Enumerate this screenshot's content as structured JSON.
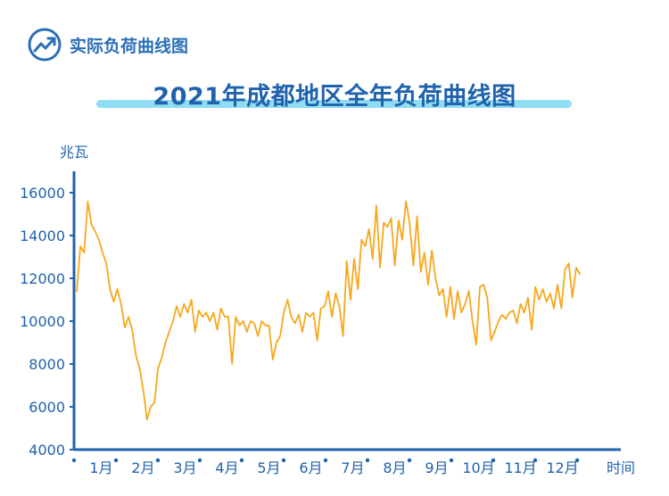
{
  "header": {
    "text": "实际负荷曲线图",
    "icon": "trending-up-icon"
  },
  "title": "2021年成都地区全年负荷曲线图",
  "colors": {
    "line": "#f5a81c",
    "axis": "#1f62ad",
    "text": "#1f62ad",
    "accent": "#90ddf3"
  },
  "chart_data": {
    "type": "line",
    "title": "2021年成都地区全年负荷曲线图",
    "ylabel": "兆瓦",
    "xlabel": "时间",
    "ylim": [
      4000,
      16000
    ],
    "yticks": [
      "16000",
      "14000",
      "12000",
      "10000",
      "8000",
      "6000",
      "4000"
    ],
    "grid": false,
    "months": [
      "1月",
      "2月",
      "3月",
      "4月",
      "5月",
      "6月",
      "7月",
      "8月",
      "9月",
      "10月",
      "11月",
      "12月"
    ],
    "series": [
      {
        "values": [
          11400,
          13500,
          13200,
          15600,
          14500,
          14200,
          13800,
          13200,
          12700,
          11500,
          10900,
          11500,
          10800,
          9700,
          10200,
          9600,
          8400,
          7800,
          6800,
          5400,
          6000,
          6200,
          7800,
          8300,
          9000,
          9500,
          10000,
          10700,
          10200,
          10800,
          10400,
          11000,
          9500,
          10500,
          10200,
          10400,
          10000,
          10400,
          9600,
          10600,
          10200,
          10200,
          8000,
          10200,
          9800,
          10000,
          9500,
          10000,
          9900,
          9300,
          10000,
          9800,
          9800,
          8200,
          9000,
          9300,
          10400,
          11000,
          10200,
          9900,
          10300,
          9500,
          10400,
          10200,
          10400,
          9100,
          10600,
          10700,
          11400,
          10200,
          11300,
          10700,
          9300,
          12800,
          11000,
          12900,
          11500,
          13800,
          13500,
          14300,
          12900,
          15400,
          12500,
          14600,
          14400,
          14800,
          12600,
          14700,
          13800,
          15600,
          14600,
          12600,
          14900,
          12300,
          13200,
          11700,
          13300,
          12000,
          11200,
          11500,
          10200,
          11600,
          10100,
          11400,
          10400,
          10800,
          11400,
          10000,
          8900,
          11600,
          11700,
          11100,
          9100,
          9500,
          10000,
          10300,
          10100,
          10400,
          10500,
          9900,
          10800,
          10400,
          11100,
          9600,
          11600,
          11000,
          11500,
          10900,
          11300,
          10600,
          11700,
          10600,
          12400,
          12700,
          11100,
          12500,
          12200
        ]
      }
    ]
  }
}
